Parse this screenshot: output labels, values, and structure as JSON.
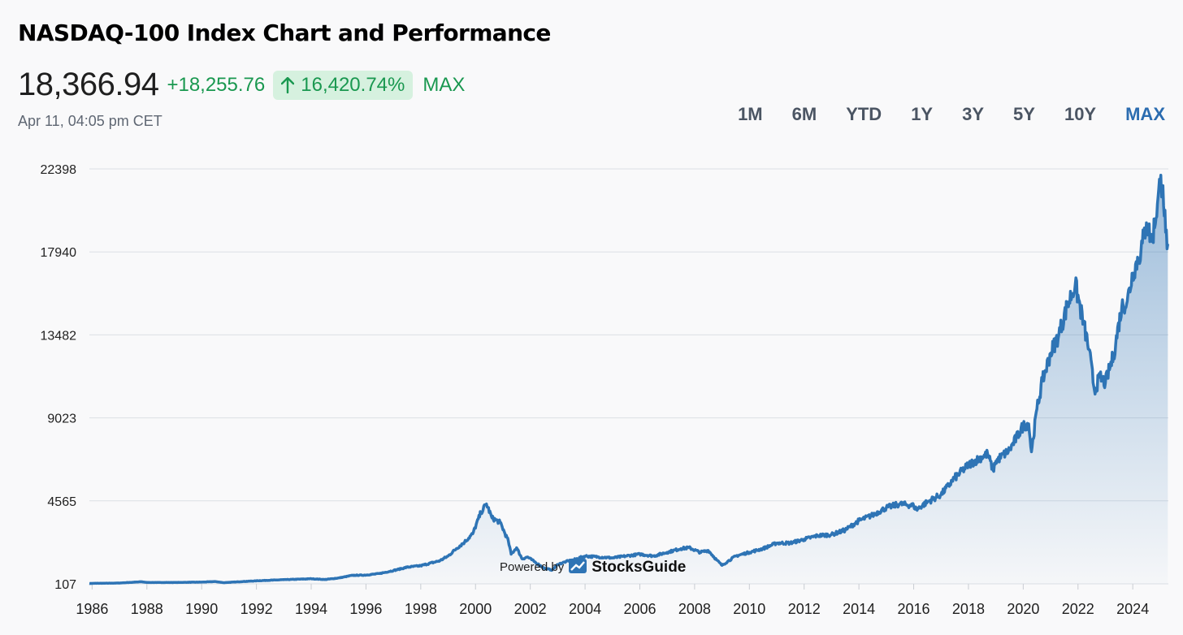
{
  "header": {
    "title": "NASDAQ-100 Index Chart and Performance",
    "price": "18,366.94",
    "change_abs": "+18,255.76",
    "change_pct": "16,420.74%",
    "selected_range": "MAX",
    "timestamp": "Apr 11, 04:05 pm CET"
  },
  "ranges": [
    "1M",
    "6M",
    "YTD",
    "1Y",
    "3Y",
    "5Y",
    "10Y",
    "MAX"
  ],
  "active_range": "MAX",
  "watermark": {
    "powered_by": "Powered by",
    "brand": "StocksGuide"
  },
  "colors": {
    "line": "#2e74b5",
    "up": "#1a9850",
    "badge_bg": "#d6f1df",
    "active_range": "#2b6cb0"
  },
  "chart_data": {
    "type": "area",
    "title": "",
    "xlabel": "",
    "ylabel": "",
    "y_ticks": [
      107,
      4565,
      9023,
      13482,
      17940,
      22398
    ],
    "x_ticks": [
      "1986",
      "1988",
      "1990",
      "1992",
      "1994",
      "1996",
      "1998",
      "2000",
      "2002",
      "2004",
      "2006",
      "2008",
      "2010",
      "2012",
      "2014",
      "2016",
      "2018",
      "2020",
      "2022",
      "2024"
    ],
    "xlim": [
      1985.9,
      2025.3
    ],
    "ylim": [
      107,
      22398
    ],
    "grid": true,
    "series": [
      {
        "x": [
          1985.9,
          1987.0,
          1987.8,
          1988.0,
          1989.0,
          1990.0,
          1990.5,
          1990.8,
          1991.5,
          1992.0,
          1993.0,
          1994.0,
          1994.5,
          1995.0,
          1995.5,
          1996.0,
          1996.5,
          1997.0,
          1997.5,
          1998.0,
          1998.7,
          1999.0,
          1999.3,
          1999.6,
          1999.9,
          2000.2,
          2000.4,
          2000.6,
          2000.9,
          2001.2,
          2001.3,
          2001.5,
          2001.7,
          2001.9,
          2002.2,
          2002.5,
          2002.8,
          2003.0,
          2003.3,
          2003.6,
          2004.0,
          2004.5,
          2005.0,
          2005.5,
          2006.0,
          2006.5,
          2007.0,
          2007.5,
          2007.8,
          2008.2,
          2008.5,
          2008.8,
          2009.0,
          2009.2,
          2009.5,
          2010.0,
          2010.5,
          2011.0,
          2011.5,
          2012.0,
          2012.5,
          2013.0,
          2013.5,
          2014.0,
          2014.5,
          2015.0,
          2015.5,
          2016.0,
          2016.1,
          2016.5,
          2017.0,
          2017.5,
          2018.0,
          2018.7,
          2018.9,
          2019.0,
          2019.5,
          2020.0,
          2020.2,
          2020.3,
          2020.5,
          2020.7,
          2021.0,
          2021.3,
          2021.6,
          2021.9,
          2022.2,
          2022.4,
          2022.6,
          2022.8,
          2023.0,
          2023.3,
          2023.6,
          2023.8,
          2024.0,
          2024.3,
          2024.5,
          2024.7,
          2024.9,
          2025.0,
          2025.1,
          2025.2,
          2025.28
        ],
        "y": [
          130,
          150,
          220,
          180,
          180,
          200,
          230,
          170,
          230,
          270,
          330,
          380,
          340,
          420,
          560,
          580,
          660,
          820,
          1000,
          1080,
          1350,
          1600,
          2000,
          2350,
          2800,
          3950,
          4400,
          3650,
          3400,
          2400,
          1700,
          2050,
          1450,
          1550,
          1250,
          950,
          850,
          1150,
          1300,
          1400,
          1600,
          1550,
          1500,
          1600,
          1700,
          1600,
          1800,
          2000,
          2050,
          1800,
          1900,
          1400,
          1100,
          1300,
          1600,
          1800,
          2000,
          2300,
          2300,
          2500,
          2700,
          2750,
          3000,
          3500,
          3800,
          4200,
          4400,
          4300,
          4100,
          4500,
          4900,
          5800,
          6500,
          7100,
          6200,
          6700,
          7300,
          8600,
          8700,
          7200,
          9500,
          11000,
          12500,
          13500,
          15000,
          16200,
          14100,
          12700,
          10500,
          11200,
          10900,
          12400,
          15000,
          15300,
          16800,
          18000,
          19500,
          18500,
          20500,
          21700,
          21500,
          19000,
          18367
        ]
      }
    ]
  }
}
